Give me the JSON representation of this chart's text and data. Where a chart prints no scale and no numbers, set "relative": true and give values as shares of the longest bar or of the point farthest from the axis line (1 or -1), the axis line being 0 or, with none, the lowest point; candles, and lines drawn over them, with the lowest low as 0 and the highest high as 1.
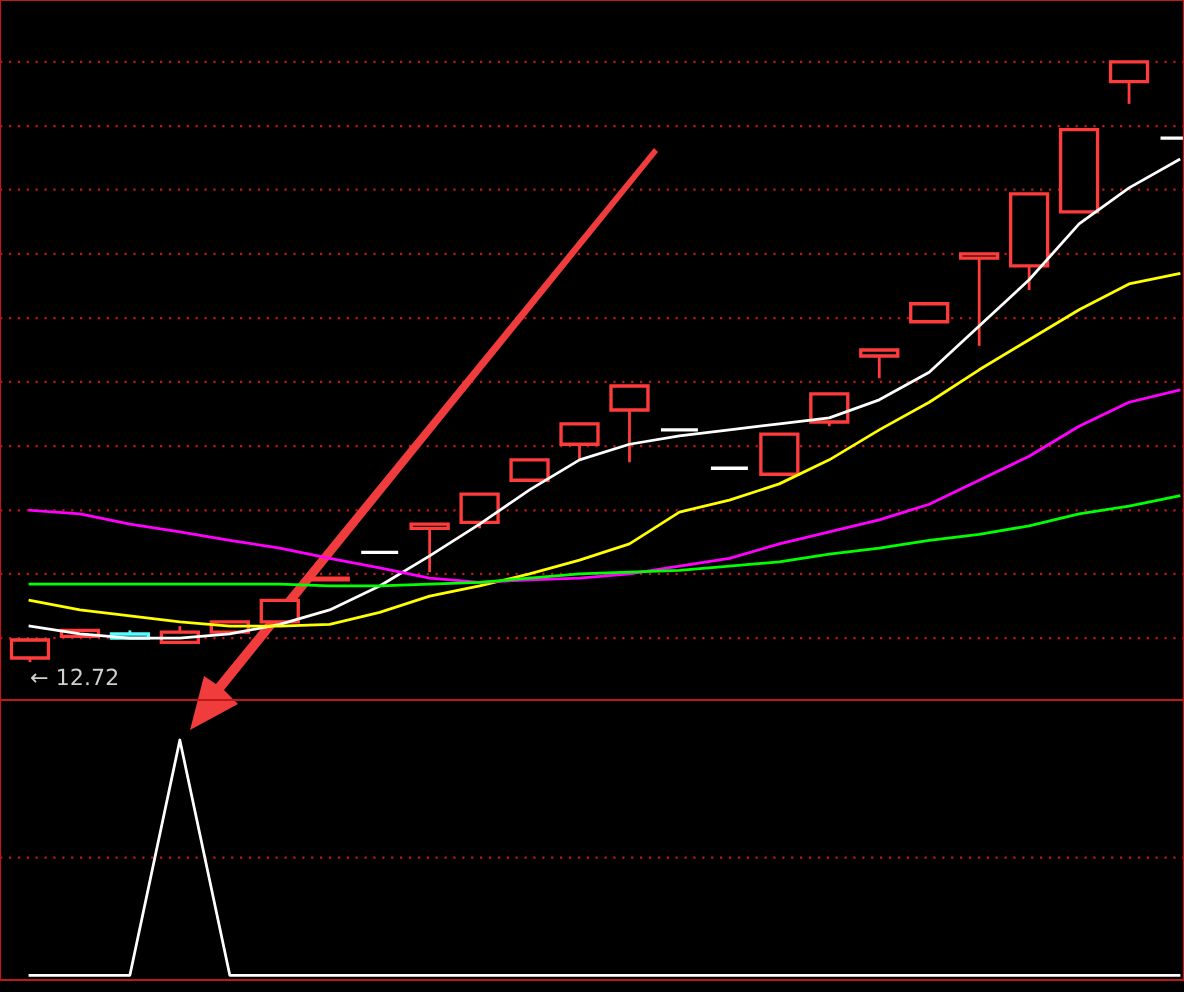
{
  "chart_data": [
    {
      "type": "candlestick",
      "relative": true,
      "tick_labels": false,
      "categories": [
        null,
        null,
        null,
        null,
        null,
        null,
        null,
        null,
        null,
        null,
        null,
        null,
        null,
        null,
        null,
        null,
        null,
        null,
        null,
        null,
        null,
        null,
        null,
        null
      ],
      "ohlc": [
        [
          0.007,
          0.037,
          0.0,
          0.037
        ],
        [
          0.043,
          0.053,
          0.043,
          0.053
        ],
        [
          0.047,
          0.053,
          0.04,
          0.04
        ],
        [
          0.033,
          0.06,
          0.033,
          0.05
        ],
        [
          0.05,
          0.067,
          0.05,
          0.067
        ],
        [
          0.067,
          0.103,
          0.067,
          0.103
        ],
        [
          0.137,
          0.14,
          0.137,
          0.14
        ],
        [
          0.183,
          0.183,
          0.183,
          0.183
        ],
        [
          0.223,
          0.23,
          0.15,
          0.23
        ],
        [
          0.233,
          0.28,
          0.223,
          0.28
        ],
        [
          0.303,
          0.337,
          0.303,
          0.337
        ],
        [
          0.363,
          0.397,
          0.337,
          0.397
        ],
        [
          0.42,
          0.46,
          0.333,
          0.46
        ],
        [
          0.387,
          0.387,
          0.387,
          0.387
        ],
        [
          0.323,
          0.323,
          0.323,
          0.323
        ],
        [
          0.313,
          0.38,
          0.313,
          0.38
        ],
        [
          0.4,
          0.447,
          0.393,
          0.447
        ],
        [
          0.51,
          0.52,
          0.473,
          0.52
        ],
        [
          0.567,
          0.597,
          0.567,
          0.597
        ],
        [
          0.673,
          0.68,
          0.527,
          0.68
        ],
        [
          0.66,
          0.78,
          0.62,
          0.78
        ],
        [
          0.75,
          0.887,
          0.75,
          0.887
        ],
        [
          0.967,
          1.0,
          0.93,
          1.0
        ],
        [
          0.873,
          0.873,
          0.873,
          0.873
        ]
      ],
      "colors": [
        "#ff3c3c",
        "#ff3c3c",
        "#54ffff",
        "#ff3c3c",
        "#ff3c3c",
        "#ff3c3c",
        "#ff3c3c",
        "#ffffff",
        "#ff3c3c",
        "#ff3c3c",
        "#ff3c3c",
        "#ff3c3c",
        "#ff3c3c",
        "#ffffff",
        "#ffffff",
        "#ff3c3c",
        "#ff3c3c",
        "#ff3c3c",
        "#ff3c3c",
        "#ff3c3c",
        "#ff3c3c",
        "#ff3c3c",
        "#ff3c3c",
        "#ffffff"
      ],
      "series": [
        {
          "type": "line",
          "color": "#ffffff",
          "values": [
            0.06,
            0.047,
            0.04,
            0.04,
            0.047,
            0.063,
            0.087,
            0.127,
            0.177,
            0.23,
            0.287,
            0.337,
            0.363,
            0.377,
            0.387,
            0.397,
            0.407,
            0.437,
            0.483,
            0.56,
            0.637,
            0.73,
            0.79,
            0.837
          ]
        },
        {
          "type": "line",
          "color": "#ffff00",
          "values": [
            0.103,
            0.087,
            0.077,
            0.067,
            0.06,
            0.06,
            0.063,
            0.083,
            0.11,
            0.127,
            0.147,
            0.17,
            0.197,
            0.25,
            0.27,
            0.297,
            0.337,
            0.387,
            0.433,
            0.487,
            0.537,
            0.587,
            0.63,
            0.647
          ]
        },
        {
          "type": "line",
          "color": "#ff00ff",
          "values": [
            0.253,
            0.247,
            0.23,
            0.217,
            0.203,
            0.19,
            0.173,
            0.157,
            0.14,
            0.133,
            0.137,
            0.14,
            0.147,
            0.16,
            0.173,
            0.197,
            0.217,
            0.237,
            0.263,
            0.303,
            0.343,
            0.393,
            0.433,
            0.453
          ]
        },
        {
          "type": "line",
          "color": "#00ff00",
          "values": [
            0.13,
            0.13,
            0.13,
            0.13,
            0.13,
            0.13,
            0.127,
            0.127,
            0.13,
            0.133,
            0.14,
            0.147,
            0.15,
            0.153,
            0.16,
            0.167,
            0.18,
            0.19,
            0.203,
            0.213,
            0.227,
            0.247,
            0.26,
            0.277
          ]
        }
      ],
      "ref_lines": [
        {
          "axis": "y",
          "value": 1.0,
          "color": "#c01818",
          "line_style": "dotted"
        },
        {
          "axis": "y",
          "value": 0.893,
          "color": "#c01818",
          "line_style": "dotted"
        },
        {
          "axis": "y",
          "value": 0.787,
          "color": "#c01818",
          "line_style": "dotted"
        },
        {
          "axis": "y",
          "value": 0.68,
          "color": "#c01818",
          "line_style": "dotted"
        },
        {
          "axis": "y",
          "value": 0.573,
          "color": "#c01818",
          "line_style": "dotted"
        },
        {
          "axis": "y",
          "value": 0.467,
          "color": "#c01818",
          "line_style": "dotted"
        },
        {
          "axis": "y",
          "value": 0.36,
          "color": "#c01818",
          "line_style": "dotted"
        },
        {
          "axis": "y",
          "value": 0.253,
          "color": "#c01818",
          "line_style": "dotted"
        },
        {
          "axis": "y",
          "value": 0.147,
          "color": "#c01818",
          "line_style": "dotted"
        },
        {
          "axis": "y",
          "value": 0.04,
          "color": "#c01818",
          "line_style": "dotted"
        }
      ],
      "annotations": [
        "← 12.72"
      ]
    },
    {
      "type": "line",
      "relative": true,
      "tick_labels": false,
      "ref_lines": [
        {
          "axis": "y",
          "value": 0.5,
          "color": "#c01818",
          "line_style": "dotted"
        }
      ],
      "categories": [
        null,
        null,
        null,
        null,
        null,
        null,
        null,
        null,
        null,
        null,
        null,
        null,
        null,
        null,
        null,
        null,
        null,
        null,
        null,
        null,
        null,
        null,
        null,
        null
      ],
      "series": [
        {
          "color": "#ffffff",
          "values": [
            0,
            0,
            0,
            1,
            0,
            0,
            0,
            0,
            0,
            0,
            0,
            0,
            0,
            0,
            0,
            0,
            0,
            0,
            0,
            0,
            0,
            0,
            0,
            0
          ]
        }
      ]
    }
  ]
}
